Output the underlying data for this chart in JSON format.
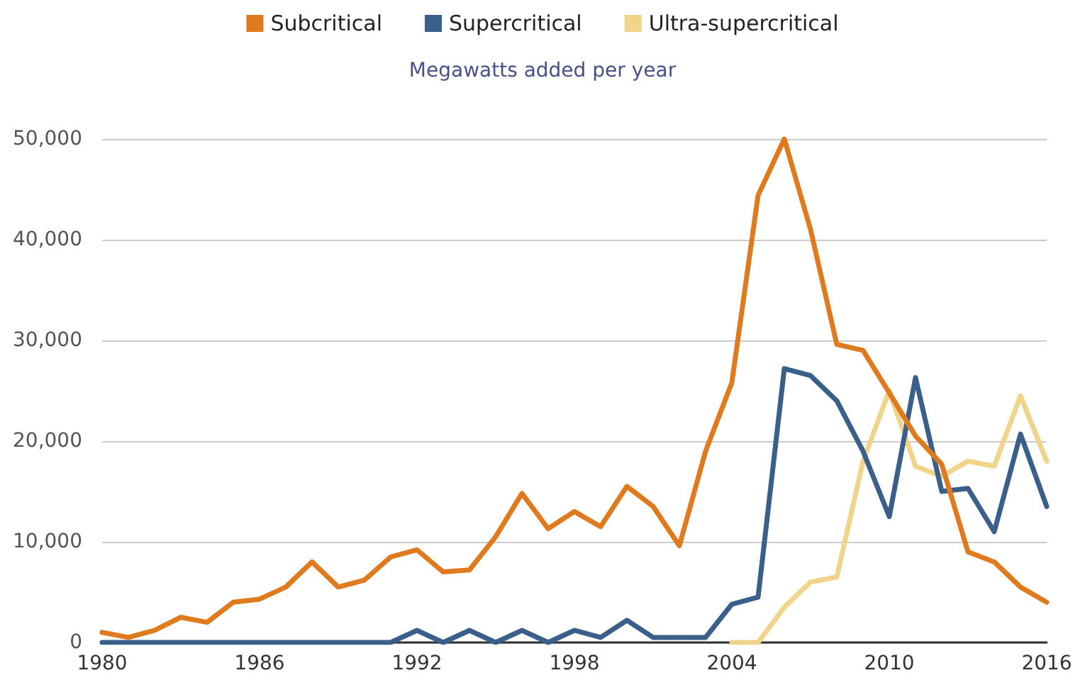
{
  "chart_data": {
    "type": "line",
    "title": "Megawatts added per year",
    "x": [
      1980,
      1981,
      1982,
      1983,
      1984,
      1985,
      1986,
      1987,
      1988,
      1989,
      1990,
      1991,
      1992,
      1993,
      1994,
      1995,
      1996,
      1997,
      1998,
      1999,
      2000,
      2001,
      2002,
      2003,
      2004,
      2005,
      2006,
      2007,
      2008,
      2009,
      2010,
      2011,
      2012,
      2013,
      2014,
      2015,
      2016
    ],
    "series": [
      {
        "name": "Subcritical",
        "color": "#e07a1f",
        "values": [
          1000,
          500,
          1200,
          2500,
          2000,
          4000,
          4300,
          5500,
          8000,
          5500,
          6200,
          8500,
          9200,
          7000,
          7200,
          10500,
          14800,
          11300,
          13000,
          11500,
          15500,
          13500,
          9600,
          19000,
          25800,
          44400,
          50000,
          41000,
          29600,
          29000,
          24800,
          20500,
          17700,
          9000,
          8000,
          5500,
          4000
        ]
      },
      {
        "name": "Supercritical",
        "color": "#3a5f8a",
        "values": [
          0,
          0,
          0,
          0,
          0,
          0,
          0,
          0,
          0,
          0,
          0,
          0,
          1200,
          0,
          1200,
          0,
          1200,
          0,
          1200,
          500,
          2200,
          500,
          500,
          500,
          3800,
          4500,
          27200,
          26500,
          24000,
          19000,
          12500,
          26300,
          15000,
          15300,
          11000,
          20700,
          13500
        ]
      },
      {
        "name": "Ultra-supercritical",
        "color": "#f0d48a",
        "values": [
          null,
          null,
          null,
          null,
          null,
          null,
          null,
          null,
          null,
          null,
          null,
          null,
          null,
          null,
          null,
          null,
          null,
          null,
          null,
          null,
          null,
          null,
          null,
          null,
          0,
          0,
          3500,
          6000,
          6500,
          18000,
          25000,
          17500,
          16500,
          18000,
          17500,
          24500,
          18000
        ]
      }
    ],
    "xlim": [
      1980,
      2016
    ],
    "xticks": [
      1980,
      1986,
      1992,
      1998,
      2004,
      2010,
      2016
    ],
    "ylim": [
      0,
      50000
    ],
    "yticks": [
      {
        "value": 0,
        "label": "0"
      },
      {
        "value": 10000,
        "label": "10,000"
      },
      {
        "value": 20000,
        "label": "20,000"
      },
      {
        "value": 30000,
        "label": "30,000"
      },
      {
        "value": 40000,
        "label": "40,000"
      },
      {
        "value": 50000,
        "label": "50,000"
      }
    ],
    "grid": "y",
    "legend": "top",
    "marker": "none",
    "line_style": "solid"
  }
}
